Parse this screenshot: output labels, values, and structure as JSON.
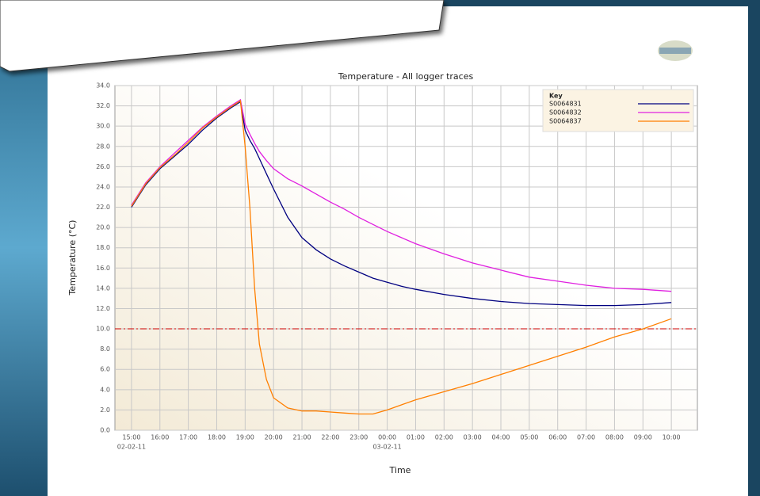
{
  "chart_data": {
    "type": "line",
    "title": "Temperature - All logger traces",
    "x_label": "Time",
    "y_label": "Temperature (°C)",
    "legend_title": "Key",
    "legend": "top-right",
    "grid": true,
    "x": [
      "02-02-11 15:00",
      "02-02-11 15:30",
      "02-02-11 16:00",
      "02-02-11 16:30",
      "02-02-11 17:00",
      "02-02-11 17:30",
      "02-02-11 18:00",
      "02-02-11 18:30",
      "02-02-11 18:50",
      "02-02-11 19:00",
      "02-02-11 19:10",
      "02-02-11 19:20",
      "02-02-11 19:30",
      "02-02-11 19:45",
      "02-02-11 20:00",
      "02-02-11 20:30",
      "02-02-11 21:00",
      "02-02-11 21:30",
      "02-02-11 22:00",
      "02-02-11 22:30",
      "02-02-11 23:00",
      "02-02-11 23:30",
      "03-02-11 00:00",
      "03-02-11 00:30",
      "03-02-11 01:00",
      "03-02-11 02:00",
      "03-02-11 03:00",
      "03-02-11 04:00",
      "03-02-11 05:00",
      "03-02-11 06:00",
      "03-02-11 07:00",
      "03-02-11 08:00",
      "03-02-11 09:00",
      "03-02-11 10:00"
    ],
    "series": [
      {
        "name": "S0064831",
        "color": "#000080",
        "values": [
          22.0,
          24.2,
          25.8,
          27.0,
          28.2,
          29.6,
          30.8,
          31.8,
          32.4,
          29.6,
          28.6,
          27.8,
          26.8,
          25.3,
          23.8,
          21.0,
          19.0,
          17.8,
          16.9,
          16.2,
          15.6,
          15.0,
          14.6,
          14.2,
          13.9,
          13.4,
          13.0,
          12.7,
          12.5,
          12.4,
          12.3,
          12.3,
          12.4,
          12.6
        ]
      },
      {
        "name": "S0064832",
        "color": "#e020e0",
        "values": [
          22.2,
          24.4,
          26.0,
          27.3,
          28.6,
          29.9,
          31.0,
          32.0,
          32.6,
          30.2,
          29.2,
          28.3,
          27.5,
          26.6,
          25.8,
          24.8,
          24.1,
          23.3,
          22.5,
          21.8,
          21.0,
          20.3,
          19.6,
          19.0,
          18.4,
          17.4,
          16.5,
          15.8,
          15.1,
          14.7,
          14.3,
          14.0,
          13.9,
          13.7
        ]
      },
      {
        "name": "S0064837",
        "color": "#ff7f00",
        "values": [
          22.1,
          24.3,
          25.9,
          27.1,
          28.4,
          29.8,
          30.9,
          31.9,
          32.5,
          28.0,
          22.0,
          14.0,
          8.5,
          5.0,
          3.2,
          2.2,
          1.9,
          1.9,
          1.8,
          1.7,
          1.6,
          1.6,
          2.0,
          2.5,
          3.0,
          3.8,
          4.6,
          5.5,
          6.4,
          7.3,
          8.2,
          9.2,
          10.0,
          11.0
        ]
      }
    ],
    "reference_line": {
      "value": 10,
      "color": "#cc0000"
    },
    "xlim": [
      "02-02-11 14:25",
      "03-02-11 10:55"
    ],
    "xticks": [
      {
        "value": "02-02-11 15:00",
        "label": "15:00",
        "date": "02-02-11"
      },
      {
        "value": "02-02-11 16:00",
        "label": "16:00"
      },
      {
        "value": "02-02-11 17:00",
        "label": "17:00"
      },
      {
        "value": "02-02-11 18:00",
        "label": "18:00"
      },
      {
        "value": "02-02-11 19:00",
        "label": "19:00"
      },
      {
        "value": "02-02-11 20:00",
        "label": "20:00"
      },
      {
        "value": "02-02-11 21:00",
        "label": "21:00"
      },
      {
        "value": "02-02-11 22:00",
        "label": "22:00"
      },
      {
        "value": "02-02-11 23:00",
        "label": "23:00"
      },
      {
        "value": "03-02-11 00:00",
        "label": "00:00",
        "date": "03-02-11"
      },
      {
        "value": "03-02-11 01:00",
        "label": "01:00"
      },
      {
        "value": "03-02-11 02:00",
        "label": "02:00"
      },
      {
        "value": "03-02-11 03:00",
        "label": "03:00"
      },
      {
        "value": "03-02-11 04:00",
        "label": "04:00"
      },
      {
        "value": "03-02-11 05:00",
        "label": "05:00"
      },
      {
        "value": "03-02-11 06:00",
        "label": "06:00"
      },
      {
        "value": "03-02-11 07:00",
        "label": "07:00"
      },
      {
        "value": "03-02-11 08:00",
        "label": "08:00"
      },
      {
        "value": "03-02-11 09:00",
        "label": "09:00"
      },
      {
        "value": "03-02-11 10:00",
        "label": "10:00"
      }
    ],
    "ylim": [
      0,
      34
    ],
    "yticks": [
      {
        "value": 0,
        "label": "0.0"
      },
      {
        "value": 2,
        "label": "2.0"
      },
      {
        "value": 4,
        "label": "4.0"
      },
      {
        "value": 6,
        "label": "6.0"
      },
      {
        "value": 8,
        "label": "8.0"
      },
      {
        "value": 10,
        "label": "10.0"
      },
      {
        "value": 12,
        "label": "12.0"
      },
      {
        "value": 14,
        "label": "14.0"
      },
      {
        "value": 16,
        "label": "16.0"
      },
      {
        "value": 18,
        "label": "18.0"
      },
      {
        "value": 20,
        "label": "20.0"
      },
      {
        "value": 22,
        "label": "22.0"
      },
      {
        "value": 24,
        "label": "24.0"
      },
      {
        "value": 26,
        "label": "26.0"
      },
      {
        "value": 28,
        "label": "28.0"
      },
      {
        "value": 30,
        "label": "30.0"
      },
      {
        "value": 32,
        "label": "32.0"
      },
      {
        "value": 34,
        "label": "34.0"
      }
    ]
  }
}
